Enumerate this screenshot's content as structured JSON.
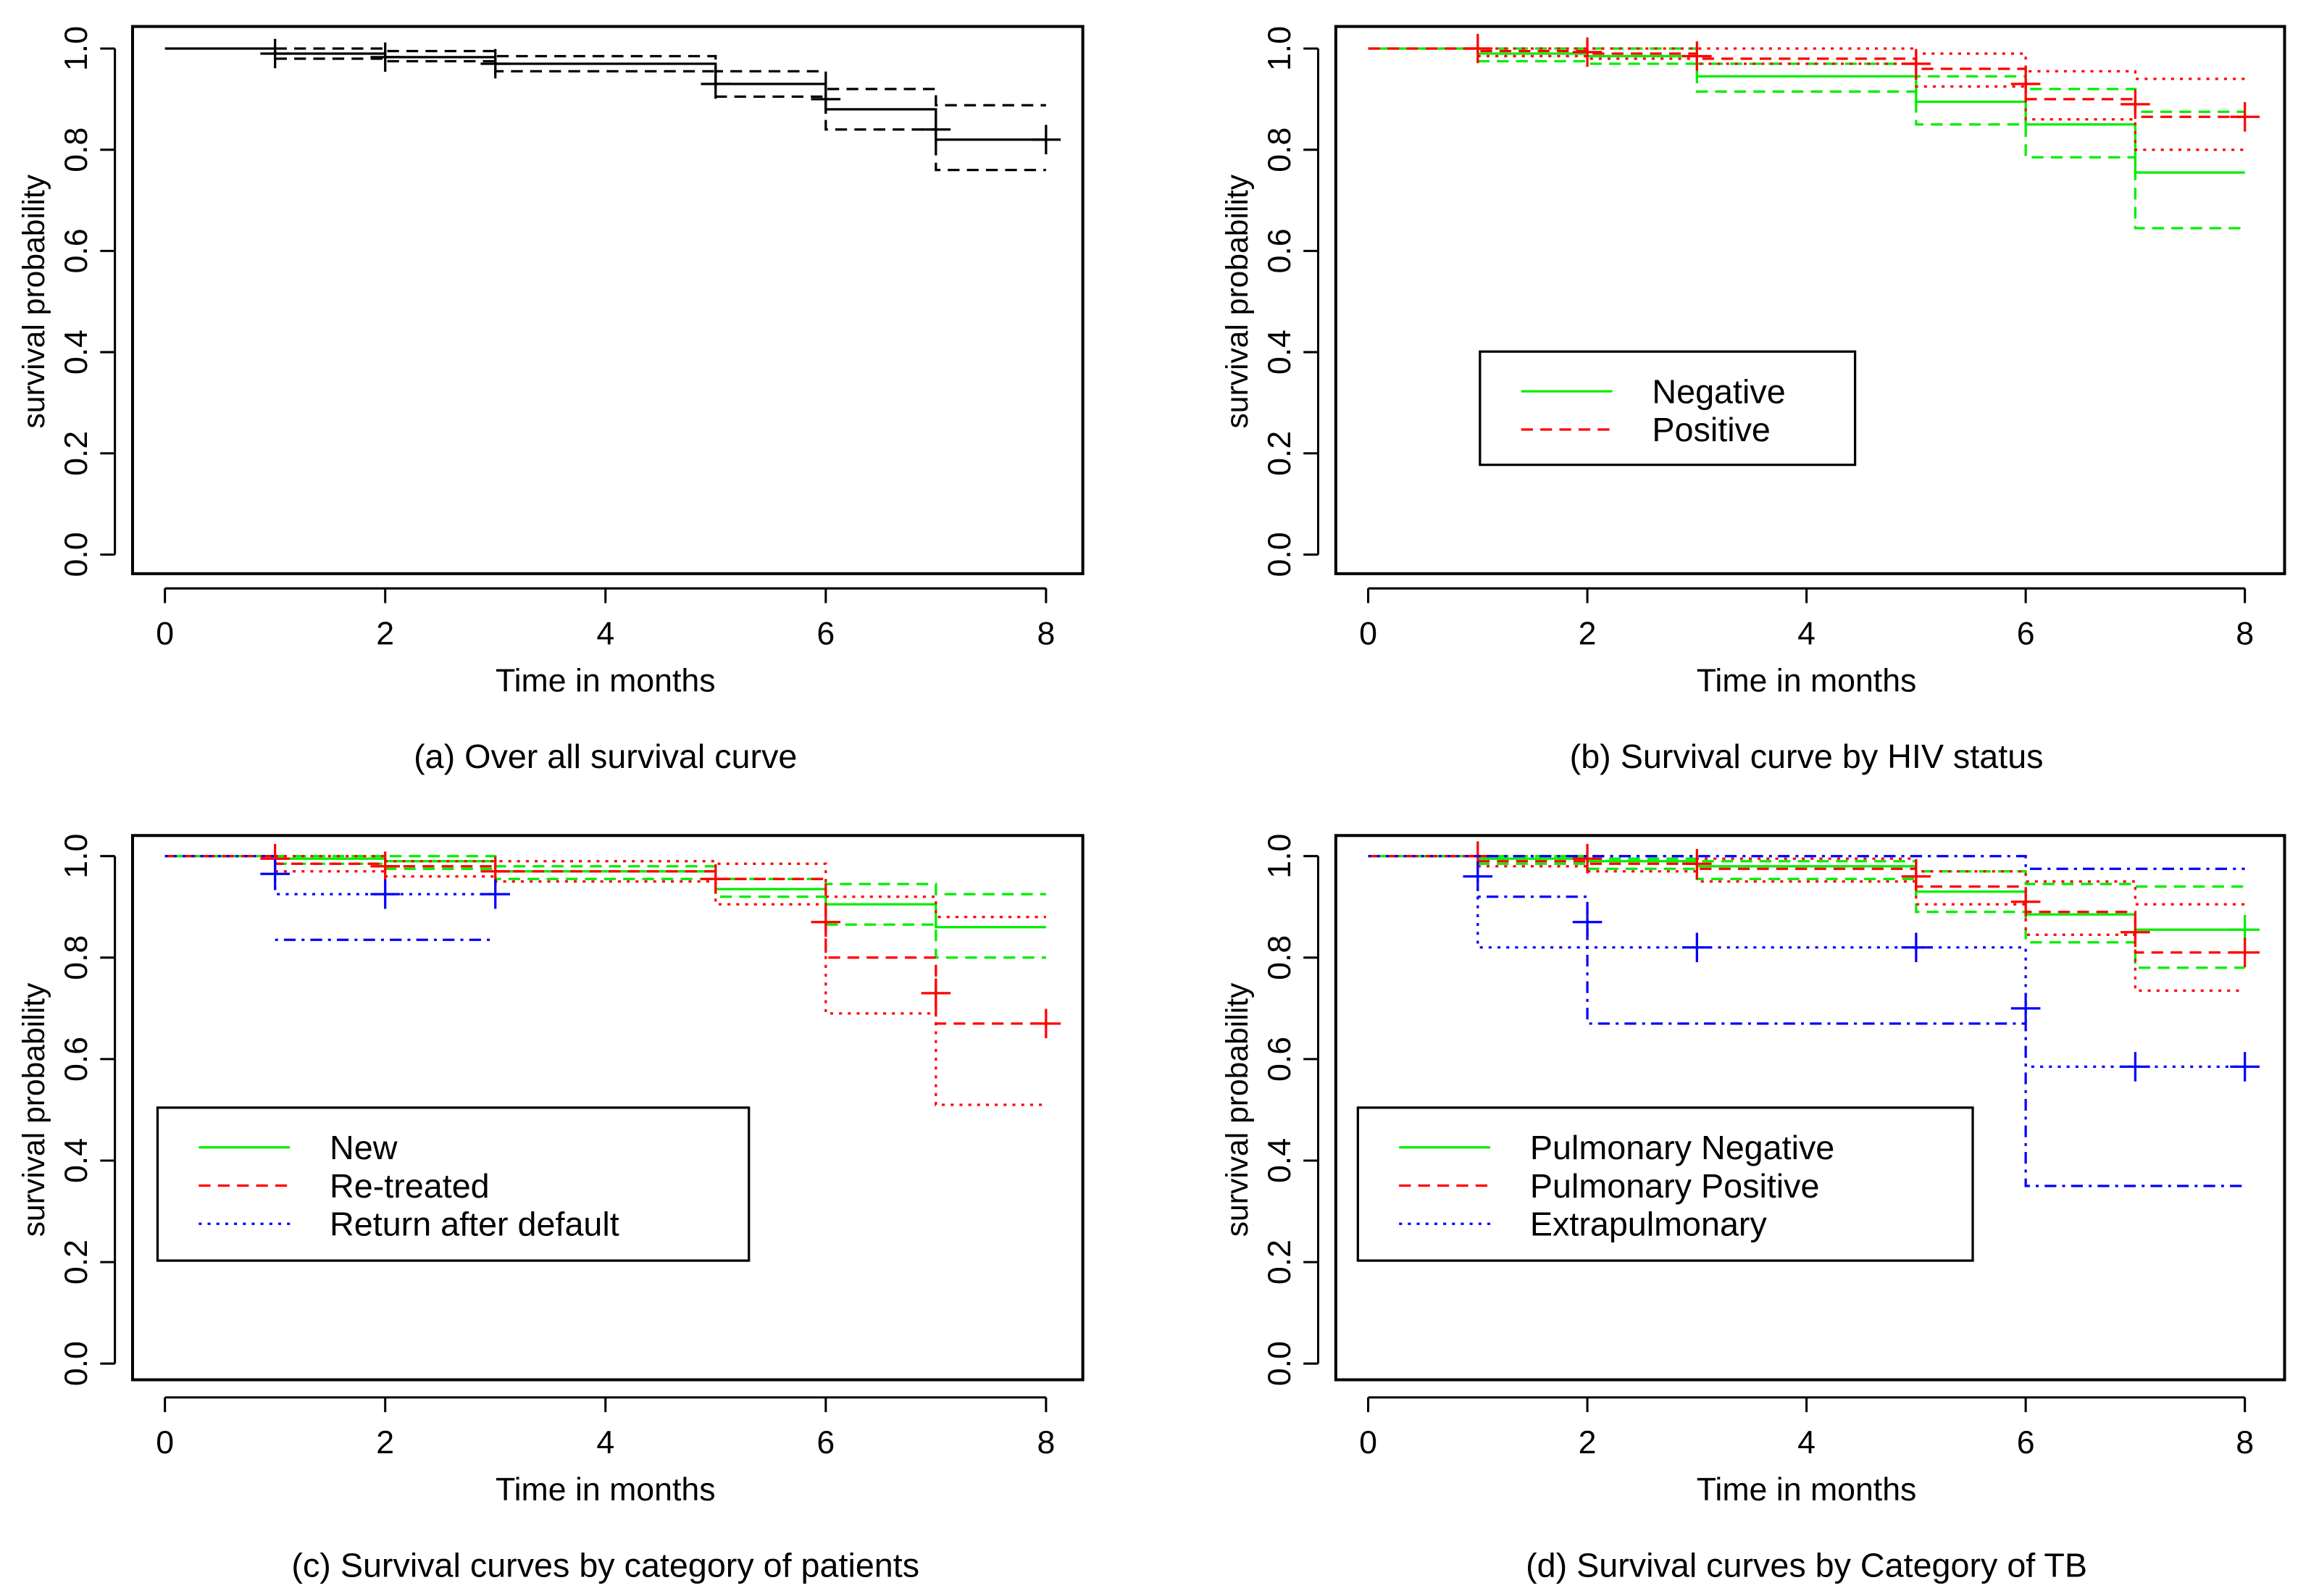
{
  "chart_data": [
    {
      "type": "line",
      "title": "(a) Over all survival curve",
      "xlabel": "Time in months",
      "ylabel": "survival probability",
      "xlim": [
        0,
        8
      ],
      "ylim": [
        0,
        1
      ],
      "xticks": [
        "0",
        "2",
        "4",
        "6",
        "8"
      ],
      "yticks": [
        "0.0",
        "0.2",
        "0.4",
        "0.6",
        "0.8",
        "1.0"
      ],
      "legend": null,
      "series": [
        {
          "name": "Overall",
          "color": "#000000",
          "style": "solid",
          "times": [
            0,
            1,
            2,
            3,
            5,
            6,
            7
          ],
          "surv": [
            1,
            0.99,
            0.983,
            0.97,
            0.93,
            0.88,
            0.82
          ],
          "censor": [
            [
              1,
              0.99
            ],
            [
              2,
              0.983
            ],
            [
              3,
              0.97
            ],
            [
              5,
              0.93
            ],
            [
              6,
              0.9
            ],
            [
              7,
              0.84
            ],
            [
              8,
              0.82
            ]
          ]
        },
        {
          "name": "Overall upper CI",
          "color": "#000000",
          "style": "dashed",
          "times": [
            1,
            2,
            3,
            5,
            6,
            7
          ],
          "surv": [
            1.0,
            0.995,
            0.985,
            0.955,
            0.92,
            0.888
          ],
          "censor": []
        },
        {
          "name": "Overall lower CI",
          "color": "#000000",
          "style": "dashed",
          "times": [
            1,
            2,
            3,
            5,
            6,
            7
          ],
          "surv": [
            0.98,
            0.975,
            0.955,
            0.905,
            0.84,
            0.76
          ],
          "censor": []
        }
      ]
    },
    {
      "type": "line",
      "title": "(b) Survival curve by HIV status",
      "xlabel": "Time in months",
      "ylabel": "survival probability",
      "xlim": [
        0,
        8
      ],
      "ylim": [
        0,
        1
      ],
      "xticks": [
        "0",
        "2",
        "4",
        "6",
        "8"
      ],
      "yticks": [
        "0.0",
        "0.2",
        "0.4",
        "0.6",
        "0.8",
        "1.0"
      ],
      "legend": {
        "placement": "center-left",
        "entries": [
          {
            "label": "Negative",
            "color": "#00ee00",
            "style": "solid"
          },
          {
            "label": "Positive",
            "color": "#ff0000",
            "style": "dashed"
          }
        ]
      },
      "series": [
        {
          "name": "Negative upper CI",
          "color": "#00ee00",
          "style": "dashed",
          "times": [
            1,
            2,
            3,
            5,
            6,
            7
          ],
          "surv": [
            1.0,
            1.0,
            0.97,
            0.945,
            0.92,
            0.875
          ],
          "censor": []
        },
        {
          "name": "Negative lower CI",
          "color": "#00ee00",
          "style": "dashed",
          "times": [
            1,
            2,
            3,
            5,
            6,
            7
          ],
          "surv": [
            0.975,
            0.97,
            0.915,
            0.85,
            0.785,
            0.645
          ],
          "censor": []
        },
        {
          "name": "Negative",
          "color": "#00ee00",
          "style": "solid",
          "times": [
            0,
            1,
            2,
            3,
            5,
            6,
            7
          ],
          "surv": [
            1,
            0.99,
            0.985,
            0.945,
            0.895,
            0.85,
            0.755
          ],
          "censor": []
        },
        {
          "name": "Positive upper CI",
          "color": "#ff0000",
          "style": "dotted",
          "times": [
            1,
            2,
            3,
            5,
            6,
            7
          ],
          "surv": [
            1.0,
            1.0,
            1.0,
            0.99,
            0.955,
            0.94
          ],
          "censor": []
        },
        {
          "name": "Positive lower CI",
          "color": "#ff0000",
          "style": "dotted",
          "times": [
            1,
            2,
            3,
            5,
            6,
            7
          ],
          "surv": [
            0.985,
            0.98,
            0.97,
            0.925,
            0.86,
            0.8
          ],
          "censor": []
        },
        {
          "name": "Positive",
          "color": "#ff0000",
          "style": "dashed",
          "times": [
            0,
            1,
            2,
            3,
            5,
            6,
            7
          ],
          "surv": [
            1,
            0.995,
            0.99,
            0.98,
            0.96,
            0.9,
            0.865
          ],
          "censor": [
            [
              1,
              1.0
            ],
            [
              2,
              0.993
            ],
            [
              3,
              0.985
            ],
            [
              5,
              0.97
            ],
            [
              6,
              0.93
            ],
            [
              7,
              0.89
            ],
            [
              8,
              0.865
            ]
          ]
        }
      ]
    },
    {
      "type": "line",
      "title": "(c) Survival curves by category of patients",
      "xlabel": "Time in months",
      "ylabel": "survival probability",
      "xlim": [
        0,
        8
      ],
      "ylim": [
        0,
        1
      ],
      "xticks": [
        "0",
        "2",
        "4",
        "6",
        "8"
      ],
      "yticks": [
        "0.0",
        "0.2",
        "0.4",
        "0.6",
        "0.8",
        "1.0"
      ],
      "legend": {
        "placement": "bottom-left",
        "entries": [
          {
            "label": "New",
            "color": "#00ee00",
            "style": "solid"
          },
          {
            "label": "Re-treated",
            "color": "#ff0000",
            "style": "dashed"
          },
          {
            "label": "Return after default",
            "color": "#0000ff",
            "style": "dotted"
          }
        ]
      },
      "series": [
        {
          "name": "New upper CI",
          "color": "#00ee00",
          "style": "dashed",
          "times": [
            1,
            2,
            3,
            5,
            6,
            7
          ],
          "surv": [
            1.0,
            1.0,
            0.98,
            0.955,
            0.945,
            0.925
          ],
          "censor": []
        },
        {
          "name": "New lower CI",
          "color": "#00ee00",
          "style": "dashed",
          "times": [
            1,
            2,
            3,
            5,
            6,
            7
          ],
          "surv": [
            0.985,
            0.975,
            0.955,
            0.92,
            0.865,
            0.8
          ],
          "censor": []
        },
        {
          "name": "New",
          "color": "#00ee00",
          "style": "solid",
          "times": [
            0,
            1,
            2,
            3,
            5,
            6,
            7
          ],
          "surv": [
            1,
            0.995,
            0.99,
            0.97,
            0.935,
            0.905,
            0.86
          ],
          "censor": []
        },
        {
          "name": "Re-treated upper CI",
          "color": "#ff0000",
          "style": "dotted",
          "times": [
            1,
            2,
            3,
            5,
            6,
            7
          ],
          "surv": [
            1.0,
            0.99,
            0.99,
            0.985,
            0.92,
            0.88
          ],
          "censor": []
        },
        {
          "name": "Re-treated lower CI",
          "color": "#ff0000",
          "style": "dotted",
          "times": [
            1,
            2,
            3,
            5,
            6,
            7
          ],
          "surv": [
            0.97,
            0.96,
            0.95,
            0.905,
            0.69,
            0.51
          ],
          "censor": []
        },
        {
          "name": "Re-treated",
          "color": "#ff0000",
          "style": "dashed",
          "times": [
            0,
            1,
            2,
            3,
            5,
            6,
            7
          ],
          "surv": [
            1,
            0.985,
            0.98,
            0.97,
            0.955,
            0.8,
            0.67
          ],
          "censor": [
            [
              1,
              0.995
            ],
            [
              2,
              0.98
            ],
            [
              3,
              0.97
            ],
            [
              5,
              0.955
            ],
            [
              6,
              0.87
            ],
            [
              7,
              0.73
            ],
            [
              8,
              0.67
            ]
          ]
        },
        {
          "name": "Return after default lower CI",
          "color": "#0000ff",
          "style": "dotdash",
          "times": [
            1
          ],
          "surv": [
            0.835
          ],
          "end": 3,
          "censor": []
        },
        {
          "name": "Return after default",
          "color": "#0000ff",
          "style": "dotted",
          "times": [
            0,
            1
          ],
          "surv": [
            1,
            0.925
          ],
          "end": 3,
          "censor": [
            [
              1,
              0.965
            ],
            [
              2,
              0.925
            ],
            [
              3,
              0.925
            ]
          ]
        }
      ]
    },
    {
      "type": "line",
      "title": "(d) Survival curves by Category of TB",
      "xlabel": "Time in months",
      "ylabel": "survival probability",
      "xlim": [
        0,
        8
      ],
      "ylim": [
        0,
        1
      ],
      "xticks": [
        "0",
        "2",
        "4",
        "6",
        "8"
      ],
      "yticks": [
        "0.0",
        "0.2",
        "0.4",
        "0.6",
        "0.8",
        "1.0"
      ],
      "legend": {
        "placement": "bottom-left",
        "entries": [
          {
            "label": "Pulmonary Negative",
            "color": "#00ee00",
            "style": "solid"
          },
          {
            "label": "Pulmonary Positive",
            "color": "#ff0000",
            "style": "dashed"
          },
          {
            "label": "Extrapulmonary",
            "color": "#0000ff",
            "style": "dotted"
          }
        ]
      },
      "series": [
        {
          "name": "Pulmonary Negative upper CI",
          "color": "#00ee00",
          "style": "dashed",
          "times": [
            1,
            2,
            3,
            5,
            6,
            7
          ],
          "surv": [
            1.0,
            0.995,
            0.99,
            0.97,
            0.945,
            0.94
          ],
          "censor": []
        },
        {
          "name": "Pulmonary Negative lower CI",
          "color": "#00ee00",
          "style": "dashed",
          "times": [
            1,
            2,
            3,
            5,
            6,
            7
          ],
          "surv": [
            0.985,
            0.975,
            0.955,
            0.89,
            0.83,
            0.78
          ],
          "censor": []
        },
        {
          "name": "Pulmonary Negative",
          "color": "#00ee00",
          "style": "solid",
          "times": [
            0,
            1,
            2,
            3,
            5,
            6,
            7
          ],
          "surv": [
            1,
            0.995,
            0.99,
            0.98,
            0.93,
            0.885,
            0.855
          ],
          "censor": [
            [
              8,
              0.855
            ]
          ]
        },
        {
          "name": "Pulmonary Positive upper CI",
          "color": "#ff0000",
          "style": "dotted",
          "times": [
            1,
            2,
            3,
            5,
            6,
            7
          ],
          "surv": [
            1.0,
            1.0,
            0.995,
            0.97,
            0.95,
            0.905
          ],
          "censor": []
        },
        {
          "name": "Pulmonary Positive lower CI",
          "color": "#ff0000",
          "style": "dotted",
          "times": [
            1,
            2,
            3,
            5,
            6,
            7
          ],
          "surv": [
            0.98,
            0.97,
            0.95,
            0.905,
            0.845,
            0.735
          ],
          "censor": []
        },
        {
          "name": "Pulmonary Positive",
          "color": "#ff0000",
          "style": "dashed",
          "times": [
            0,
            1,
            2,
            3,
            5,
            6,
            7
          ],
          "surv": [
            1,
            0.99,
            0.985,
            0.975,
            0.94,
            0.89,
            0.81
          ],
          "censor": [
            [
              1,
              1.0
            ],
            [
              2,
              0.995
            ],
            [
              3,
              0.985
            ],
            [
              5,
              0.96
            ],
            [
              6,
              0.91
            ],
            [
              7,
              0.85
            ],
            [
              8,
              0.81
            ]
          ]
        },
        {
          "name": "Extrapulmonary upper CI",
          "color": "#0000ff",
          "style": "dotdash",
          "times": [
            1,
            6
          ],
          "surv": [
            1.0,
            0.975
          ],
          "censor": []
        },
        {
          "name": "Extrapulmonary lower CI",
          "color": "#0000ff",
          "style": "dotdash",
          "times": [
            1,
            2,
            6
          ],
          "surv": [
            0.92,
            0.67,
            0.35
          ],
          "censor": []
        },
        {
          "name": "Extrapulmonary",
          "color": "#0000ff",
          "style": "dotted",
          "times": [
            0,
            1,
            6
          ],
          "surv": [
            1,
            0.82,
            0.585
          ],
          "censor": [
            [
              1,
              0.96
            ],
            [
              2,
              0.87
            ],
            [
              3,
              0.82
            ],
            [
              5,
              0.82
            ],
            [
              6,
              0.7
            ],
            [
              7,
              0.585
            ],
            [
              8,
              0.585
            ]
          ]
        }
      ]
    }
  ]
}
